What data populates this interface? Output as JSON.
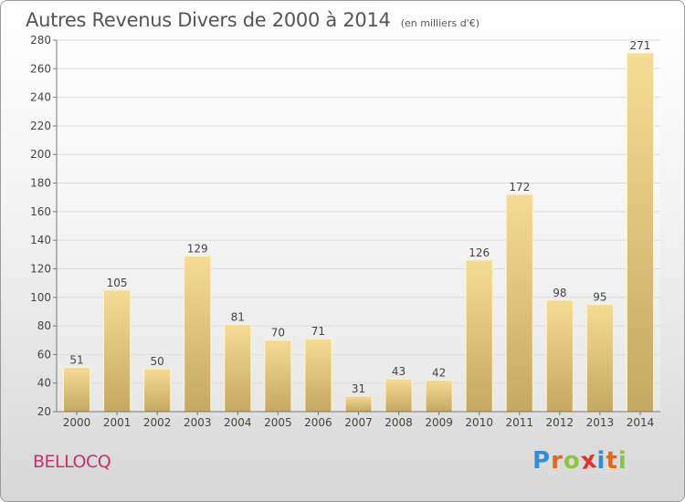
{
  "header": {
    "title": "Autres Revenus Divers de 2000 à 2014",
    "unit": "(en milliers d'€)"
  },
  "footer": {
    "town": "BELLOCQ",
    "logo_letters": [
      "P",
      "r",
      "o",
      "x",
      "i",
      "t",
      "i"
    ],
    "logo_colors": [
      "#2e8fd6",
      "#e0681a",
      "#8cc63f",
      "#e2322f",
      "#2e8fd6",
      "#e0681a",
      "#8cc63f"
    ]
  },
  "chart_data": {
    "type": "bar",
    "categories": [
      "2000",
      "2001",
      "2002",
      "2003",
      "2004",
      "2005",
      "2006",
      "2007",
      "2008",
      "2009",
      "2010",
      "2011",
      "2012",
      "2013",
      "2014"
    ],
    "values": [
      51,
      105,
      50,
      129,
      81,
      70,
      71,
      31,
      43,
      42,
      126,
      172,
      98,
      95,
      271
    ],
    "ylim": [
      20,
      280
    ],
    "yticks": [
      20,
      40,
      60,
      80,
      100,
      120,
      140,
      160,
      180,
      200,
      220,
      240,
      260,
      280
    ],
    "grid": true,
    "bar_color_top": "#f5dc94",
    "bar_color_bottom": "#c5a862",
    "grid_color": "#dcdcdc"
  }
}
